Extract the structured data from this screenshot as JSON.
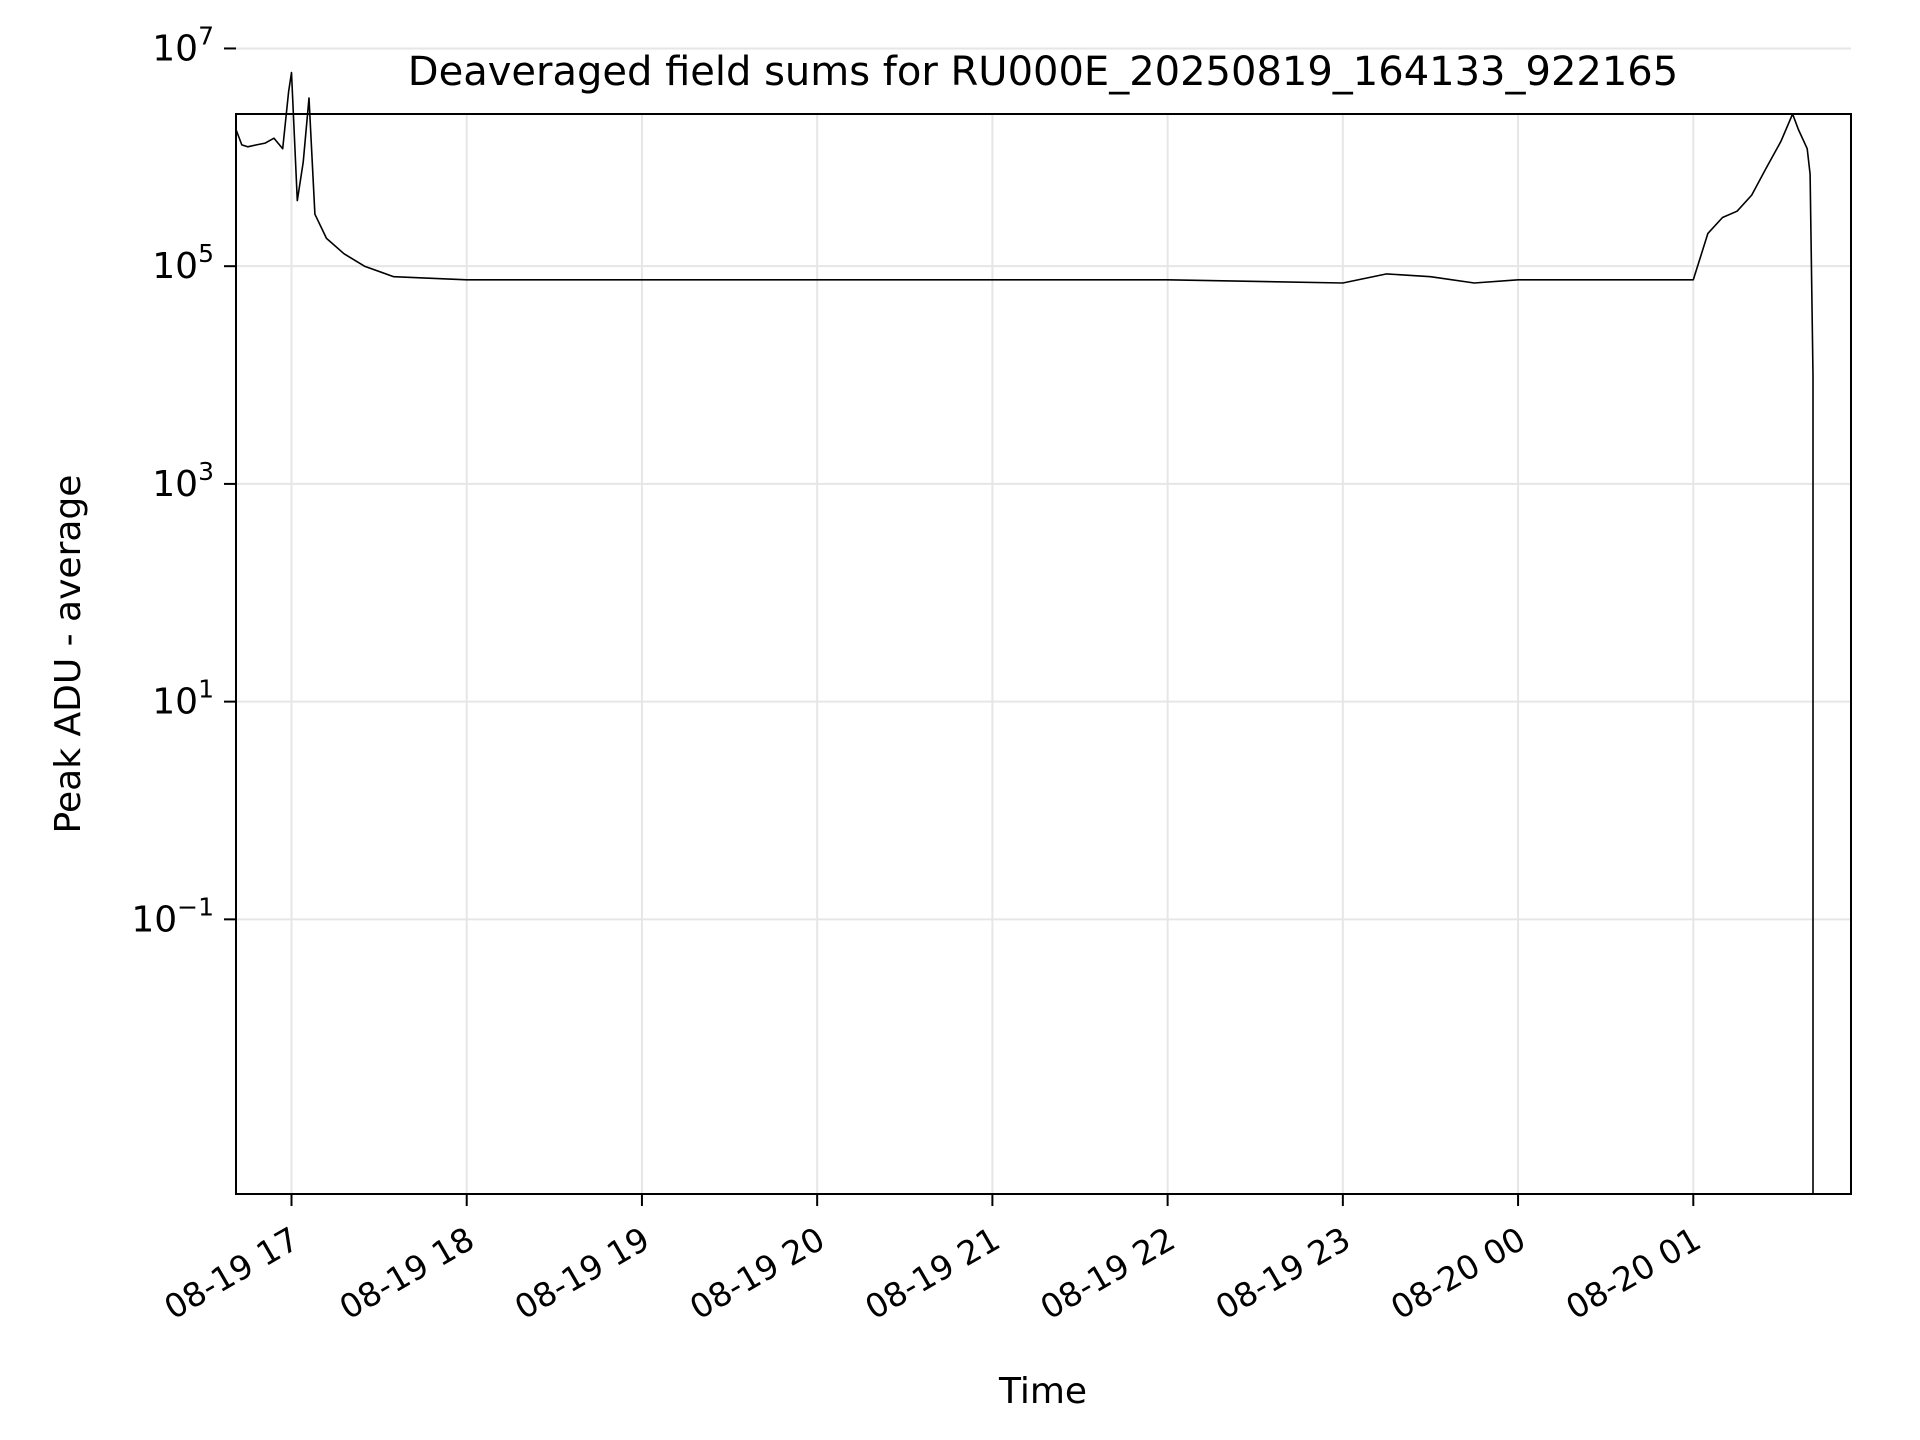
{
  "chart_data": {
    "type": "line",
    "title": "Deaveraged field sums for RU000E_20250819_164133_922165",
    "xlabel": "Time",
    "ylabel": "Peak ADU - average",
    "yscale": "log",
    "ylim": [
      0.0003,
      2500000
    ],
    "xlim": [
      "2025-08-19 16:41",
      "2025-08-20 01:54"
    ],
    "grid": true,
    "x_ticks": [
      {
        "x": "2025-08-19 17:00",
        "label": "08-19 17"
      },
      {
        "x": "2025-08-19 18:00",
        "label": "08-19 18"
      },
      {
        "x": "2025-08-19 19:00",
        "label": "08-19 19"
      },
      {
        "x": "2025-08-19 20:00",
        "label": "08-19 20"
      },
      {
        "x": "2025-08-19 21:00",
        "label": "08-19 21"
      },
      {
        "x": "2025-08-19 22:00",
        "label": "08-19 22"
      },
      {
        "x": "2025-08-19 23:00",
        "label": "08-19 23"
      },
      {
        "x": "2025-08-20 00:00",
        "label": "08-20 00"
      },
      {
        "x": "2025-08-20 01:00",
        "label": "08-20 01"
      }
    ],
    "y_ticks": [
      {
        "value": 0.1,
        "base": "10",
        "exp": "−1"
      },
      {
        "value": 10,
        "base": "10",
        "exp": "1"
      },
      {
        "value": 1000,
        "base": "10",
        "exp": "3"
      },
      {
        "value": 100000,
        "base": "10",
        "exp": "5"
      },
      {
        "value": 10000000,
        "base": "10",
        "exp": "7"
      }
    ],
    "series": [
      {
        "color": "#000000",
        "points": [
          [
            "2025-08-19 16:41",
            1800000
          ],
          [
            "2025-08-19 16:43",
            1300000
          ],
          [
            "2025-08-19 16:45",
            1250000
          ],
          [
            "2025-08-19 16:48",
            1300000
          ],
          [
            "2025-08-19 16:51",
            1350000
          ],
          [
            "2025-08-19 16:54",
            1500000
          ],
          [
            "2025-08-19 16:57",
            1200000
          ],
          [
            "2025-08-19 16:59",
            4000000
          ],
          [
            "2025-08-19 17:00",
            6000000
          ],
          [
            "2025-08-19 17:02",
            400000
          ],
          [
            "2025-08-19 17:04",
            900000
          ],
          [
            "2025-08-19 17:06",
            3500000
          ],
          [
            "2025-08-19 17:08",
            300000
          ],
          [
            "2025-08-19 17:12",
            180000
          ],
          [
            "2025-08-19 17:18",
            130000
          ],
          [
            "2025-08-19 17:25",
            100000
          ],
          [
            "2025-08-19 17:35",
            80000
          ],
          [
            "2025-08-19 18:00",
            75000
          ],
          [
            "2025-08-19 19:00",
            75000
          ],
          [
            "2025-08-19 20:00",
            75000
          ],
          [
            "2025-08-19 21:00",
            75000
          ],
          [
            "2025-08-19 22:00",
            75000
          ],
          [
            "2025-08-19 23:00",
            70000
          ],
          [
            "2025-08-19 23:15",
            85000
          ],
          [
            "2025-08-19 23:30",
            80000
          ],
          [
            "2025-08-19 23:45",
            70000
          ],
          [
            "2025-08-20 00:00",
            75000
          ],
          [
            "2025-08-20 00:30",
            75000
          ],
          [
            "2025-08-20 01:00",
            75000
          ],
          [
            "2025-08-20 01:05",
            200000
          ],
          [
            "2025-08-20 01:10",
            280000
          ],
          [
            "2025-08-20 01:15",
            320000
          ],
          [
            "2025-08-20 01:20",
            450000
          ],
          [
            "2025-08-20 01:25",
            800000
          ],
          [
            "2025-08-20 01:30",
            1400000
          ],
          [
            "2025-08-20 01:34",
            2500000
          ],
          [
            "2025-08-20 01:36",
            1800000
          ],
          [
            "2025-08-20 01:39",
            1200000
          ],
          [
            "2025-08-20 01:40",
            700000
          ],
          [
            "2025-08-20 01:41",
            10000
          ],
          [
            "2025-08-20 01:41",
            0.0003
          ]
        ]
      }
    ]
  }
}
